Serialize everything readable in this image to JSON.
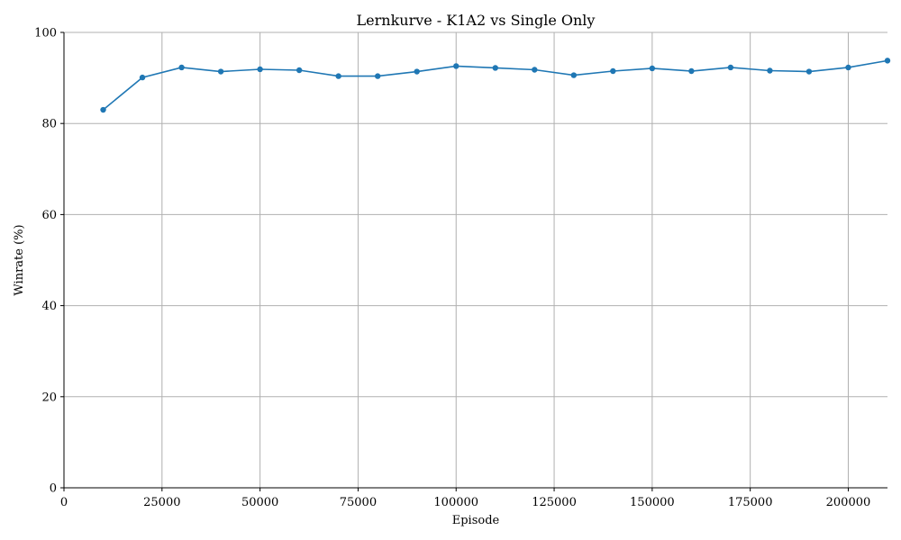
{
  "chart_data": {
    "type": "line",
    "title": "Lernkurve - K1A2 vs Single Only",
    "xlabel": "Episode",
    "ylabel": "Winrate (%)",
    "xlim": [
      0,
      210000
    ],
    "ylim": [
      0,
      100
    ],
    "xticks": [
      0,
      25000,
      50000,
      75000,
      100000,
      125000,
      150000,
      175000,
      200000
    ],
    "yticks": [
      0,
      20,
      40,
      60,
      80,
      100
    ],
    "grid": true,
    "series_color": "#1f77b4",
    "x": [
      10000,
      20000,
      30000,
      40000,
      50000,
      60000,
      70000,
      80000,
      90000,
      100000,
      110000,
      120000,
      130000,
      140000,
      150000,
      160000,
      170000,
      180000,
      190000,
      200000,
      210000
    ],
    "series": [
      {
        "values": [
          83.0,
          90.1,
          92.3,
          91.4,
          91.9,
          91.7,
          90.4,
          90.4,
          91.4,
          92.6,
          92.2,
          91.8,
          90.6,
          91.5,
          92.1,
          91.5,
          92.3,
          91.6,
          91.4,
          92.3,
          93.8
        ]
      }
    ]
  }
}
